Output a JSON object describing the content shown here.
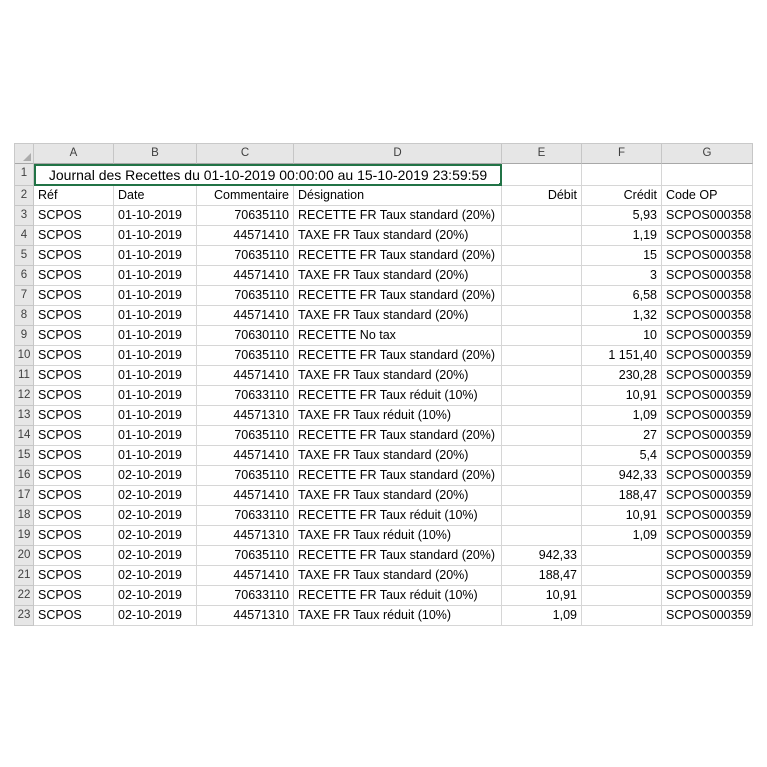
{
  "spreadsheet": {
    "selection_color": "#217346",
    "header_bg_color": "#e6e6e6",
    "gridline_color": "#d6d6d6",
    "column_letters": [
      "A",
      "B",
      "C",
      "D",
      "E",
      "F",
      "G"
    ],
    "title_row": {
      "row_number": "1",
      "title": "Journal des Recettes du 01-10-2019 00:00:00 au 15-10-2019 23:59:59",
      "merged_span": "A1:D1"
    },
    "header_row": {
      "row_number": "2",
      "cells": [
        "Réf",
        "Date",
        "Commentaire",
        "Désignation",
        "Débit",
        "Crédit",
        "Code OP"
      ]
    },
    "rows": [
      {
        "n": "3",
        "ref": "SCPOS",
        "date": "01-10-2019",
        "commentaire": "70635110",
        "designation": "RECETTE FR Taux standard (20%)",
        "debit": "",
        "credit": "5,93",
        "code_op": "SCPOS000358"
      },
      {
        "n": "4",
        "ref": "SCPOS",
        "date": "01-10-2019",
        "commentaire": "44571410",
        "designation": "TAXE FR Taux standard (20%)",
        "debit": "",
        "credit": "1,19",
        "code_op": "SCPOS000358"
      },
      {
        "n": "5",
        "ref": "SCPOS",
        "date": "01-10-2019",
        "commentaire": "70635110",
        "designation": "RECETTE FR Taux standard (20%)",
        "debit": "",
        "credit": "15",
        "code_op": "SCPOS000358"
      },
      {
        "n": "6",
        "ref": "SCPOS",
        "date": "01-10-2019",
        "commentaire": "44571410",
        "designation": "TAXE FR Taux standard (20%)",
        "debit": "",
        "credit": "3",
        "code_op": "SCPOS000358"
      },
      {
        "n": "7",
        "ref": "SCPOS",
        "date": "01-10-2019",
        "commentaire": "70635110",
        "designation": "RECETTE FR Taux standard (20%)",
        "debit": "",
        "credit": "6,58",
        "code_op": "SCPOS000358"
      },
      {
        "n": "8",
        "ref": "SCPOS",
        "date": "01-10-2019",
        "commentaire": "44571410",
        "designation": "TAXE FR Taux standard (20%)",
        "debit": "",
        "credit": "1,32",
        "code_op": "SCPOS000358"
      },
      {
        "n": "9",
        "ref": "SCPOS",
        "date": "01-10-2019",
        "commentaire": "70630110",
        "designation": "RECETTE No tax",
        "debit": "",
        "credit": "10",
        "code_op": "SCPOS000359"
      },
      {
        "n": "10",
        "ref": "SCPOS",
        "date": "01-10-2019",
        "commentaire": "70635110",
        "designation": "RECETTE FR Taux standard (20%)",
        "debit": "",
        "credit": "1 151,40",
        "code_op": "SCPOS000359"
      },
      {
        "n": "11",
        "ref": "SCPOS",
        "date": "01-10-2019",
        "commentaire": "44571410",
        "designation": "TAXE FR Taux standard (20%)",
        "debit": "",
        "credit": "230,28",
        "code_op": "SCPOS000359"
      },
      {
        "n": "12",
        "ref": "SCPOS",
        "date": "01-10-2019",
        "commentaire": "70633110",
        "designation": "RECETTE FR Taux réduit (10%)",
        "debit": "",
        "credit": "10,91",
        "code_op": "SCPOS000359"
      },
      {
        "n": "13",
        "ref": "SCPOS",
        "date": "01-10-2019",
        "commentaire": "44571310",
        "designation": "TAXE FR Taux réduit (10%)",
        "debit": "",
        "credit": "1,09",
        "code_op": "SCPOS000359"
      },
      {
        "n": "14",
        "ref": "SCPOS",
        "date": "01-10-2019",
        "commentaire": "70635110",
        "designation": "RECETTE FR Taux standard (20%)",
        "debit": "",
        "credit": "27",
        "code_op": "SCPOS000359"
      },
      {
        "n": "15",
        "ref": "SCPOS",
        "date": "01-10-2019",
        "commentaire": "44571410",
        "designation": "TAXE FR Taux standard (20%)",
        "debit": "",
        "credit": "5,4",
        "code_op": "SCPOS000359"
      },
      {
        "n": "16",
        "ref": "SCPOS",
        "date": "02-10-2019",
        "commentaire": "70635110",
        "designation": "RECETTE FR Taux standard (20%)",
        "debit": "",
        "credit": "942,33",
        "code_op": "SCPOS000359"
      },
      {
        "n": "17",
        "ref": "SCPOS",
        "date": "02-10-2019",
        "commentaire": "44571410",
        "designation": "TAXE FR Taux standard (20%)",
        "debit": "",
        "credit": "188,47",
        "code_op": "SCPOS000359"
      },
      {
        "n": "18",
        "ref": "SCPOS",
        "date": "02-10-2019",
        "commentaire": "70633110",
        "designation": "RECETTE FR Taux réduit (10%)",
        "debit": "",
        "credit": "10,91",
        "code_op": "SCPOS000359"
      },
      {
        "n": "19",
        "ref": "SCPOS",
        "date": "02-10-2019",
        "commentaire": "44571310",
        "designation": "TAXE FR Taux réduit (10%)",
        "debit": "",
        "credit": "1,09",
        "code_op": "SCPOS000359"
      },
      {
        "n": "20",
        "ref": "SCPOS",
        "date": "02-10-2019",
        "commentaire": "70635110",
        "designation": "RECETTE FR Taux standard (20%)",
        "debit": "942,33",
        "credit": "",
        "code_op": "SCPOS000359"
      },
      {
        "n": "21",
        "ref": "SCPOS",
        "date": "02-10-2019",
        "commentaire": "44571410",
        "designation": "TAXE FR Taux standard (20%)",
        "debit": "188,47",
        "credit": "",
        "code_op": "SCPOS000359"
      },
      {
        "n": "22",
        "ref": "SCPOS",
        "date": "02-10-2019",
        "commentaire": "70633110",
        "designation": "RECETTE FR Taux réduit (10%)",
        "debit": "10,91",
        "credit": "",
        "code_op": "SCPOS000359"
      },
      {
        "n": "23",
        "ref": "SCPOS",
        "date": "02-10-2019",
        "commentaire": "44571310",
        "designation": "TAXE FR Taux réduit (10%)",
        "debit": "1,09",
        "credit": "",
        "code_op": "SCPOS000359"
      }
    ]
  }
}
